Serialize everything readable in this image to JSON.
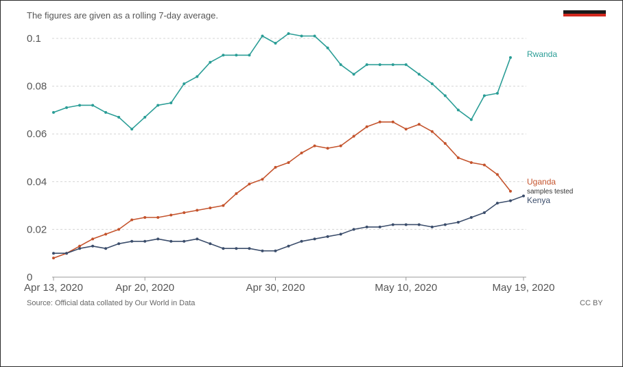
{
  "subtitle": "The figures are given as a rolling 7-day average.",
  "source": "Source: Official data collated by Our World in Data",
  "license": "CC BY",
  "unit_note": "samples tested",
  "flag_colors": [
    "#1a1a1a",
    "#d2281e"
  ],
  "chart_data": {
    "type": "line",
    "title": "",
    "xlabel": "",
    "ylabel": "",
    "x_start": "2020-04-13",
    "x_tick_labels": [
      "Apr 13, 2020",
      "Apr 20, 2020",
      "Apr 30, 2020",
      "May 10, 2020",
      "May 19, 2020"
    ],
    "x_tick_dates": [
      "2020-04-13",
      "2020-04-20",
      "2020-04-30",
      "2020-05-10",
      "2020-05-19"
    ],
    "x_range": [
      "2020-04-13",
      "2020-05-19"
    ],
    "y_tick_labels": [
      "0",
      "0.02",
      "0.04",
      "0.06",
      "0.08",
      "0.1"
    ],
    "y_ticks": [
      0,
      0.02,
      0.04,
      0.06,
      0.08,
      0.1
    ],
    "ylim": [
      0,
      0.1
    ],
    "grid": "horizontal dashed",
    "series": [
      {
        "name": "Rwanda",
        "color": "#2a9d96",
        "x": [
          "2020-04-13",
          "2020-04-14",
          "2020-04-15",
          "2020-04-16",
          "2020-04-17",
          "2020-04-18",
          "2020-04-19",
          "2020-04-20",
          "2020-04-21",
          "2020-04-22",
          "2020-04-23",
          "2020-04-24",
          "2020-04-25",
          "2020-04-26",
          "2020-04-27",
          "2020-04-28",
          "2020-04-29",
          "2020-04-30",
          "2020-05-01",
          "2020-05-02",
          "2020-05-03",
          "2020-05-04",
          "2020-05-05",
          "2020-05-06",
          "2020-05-07",
          "2020-05-08",
          "2020-05-09",
          "2020-05-10",
          "2020-05-11",
          "2020-05-12",
          "2020-05-13",
          "2020-05-14",
          "2020-05-15",
          "2020-05-16",
          "2020-05-17",
          "2020-05-18"
        ],
        "values": [
          0.069,
          0.071,
          0.072,
          0.072,
          0.069,
          0.067,
          0.062,
          0.067,
          0.072,
          0.073,
          0.081,
          0.084,
          0.09,
          0.093,
          0.093,
          0.093,
          0.101,
          0.098,
          0.102,
          0.101,
          0.101,
          0.096,
          0.089,
          0.085,
          0.089,
          0.089,
          0.089,
          0.089,
          0.085,
          0.081,
          0.076,
          0.07,
          0.066,
          0.076,
          0.077,
          0.092
        ]
      },
      {
        "name": "Uganda",
        "color": "#c4532c",
        "x": [
          "2020-04-13",
          "2020-04-14",
          "2020-04-15",
          "2020-04-16",
          "2020-04-17",
          "2020-04-18",
          "2020-04-19",
          "2020-04-20",
          "2020-04-21",
          "2020-04-22",
          "2020-04-23",
          "2020-04-24",
          "2020-04-25",
          "2020-04-26",
          "2020-04-27",
          "2020-04-28",
          "2020-04-29",
          "2020-04-30",
          "2020-05-01",
          "2020-05-02",
          "2020-05-03",
          "2020-05-04",
          "2020-05-05",
          "2020-05-06",
          "2020-05-07",
          "2020-05-08",
          "2020-05-09",
          "2020-05-10",
          "2020-05-11",
          "2020-05-12",
          "2020-05-13",
          "2020-05-14",
          "2020-05-15",
          "2020-05-16",
          "2020-05-17",
          "2020-05-18"
        ],
        "values": [
          0.008,
          0.01,
          0.013,
          0.016,
          0.018,
          0.02,
          0.024,
          0.025,
          0.025,
          0.026,
          0.027,
          0.028,
          0.029,
          0.03,
          0.035,
          0.039,
          0.041,
          0.046,
          0.048,
          0.052,
          0.055,
          0.054,
          0.055,
          0.059,
          0.063,
          0.065,
          0.065,
          0.062,
          0.064,
          0.061,
          0.056,
          0.05,
          0.048,
          0.047,
          0.043,
          0.036
        ]
      },
      {
        "name": "Kenya",
        "color": "#3b4d6b",
        "x": [
          "2020-04-13",
          "2020-04-14",
          "2020-04-15",
          "2020-04-16",
          "2020-04-17",
          "2020-04-18",
          "2020-04-19",
          "2020-04-20",
          "2020-04-21",
          "2020-04-22",
          "2020-04-23",
          "2020-04-24",
          "2020-04-25",
          "2020-04-26",
          "2020-04-27",
          "2020-04-28",
          "2020-04-29",
          "2020-04-30",
          "2020-05-01",
          "2020-05-02",
          "2020-05-03",
          "2020-05-04",
          "2020-05-05",
          "2020-05-06",
          "2020-05-07",
          "2020-05-08",
          "2020-05-09",
          "2020-05-10",
          "2020-05-11",
          "2020-05-12",
          "2020-05-13",
          "2020-05-14",
          "2020-05-15",
          "2020-05-16",
          "2020-05-17",
          "2020-05-18",
          "2020-05-19"
        ],
        "values": [
          0.01,
          0.01,
          0.012,
          0.013,
          0.012,
          0.014,
          0.015,
          0.015,
          0.016,
          0.015,
          0.015,
          0.016,
          0.014,
          0.012,
          0.012,
          0.012,
          0.011,
          0.011,
          0.013,
          0.015,
          0.016,
          0.017,
          0.018,
          0.02,
          0.021,
          0.021,
          0.022,
          0.022,
          0.022,
          0.021,
          0.022,
          0.023,
          0.025,
          0.027,
          0.031,
          0.032,
          0.034
        ]
      }
    ]
  }
}
